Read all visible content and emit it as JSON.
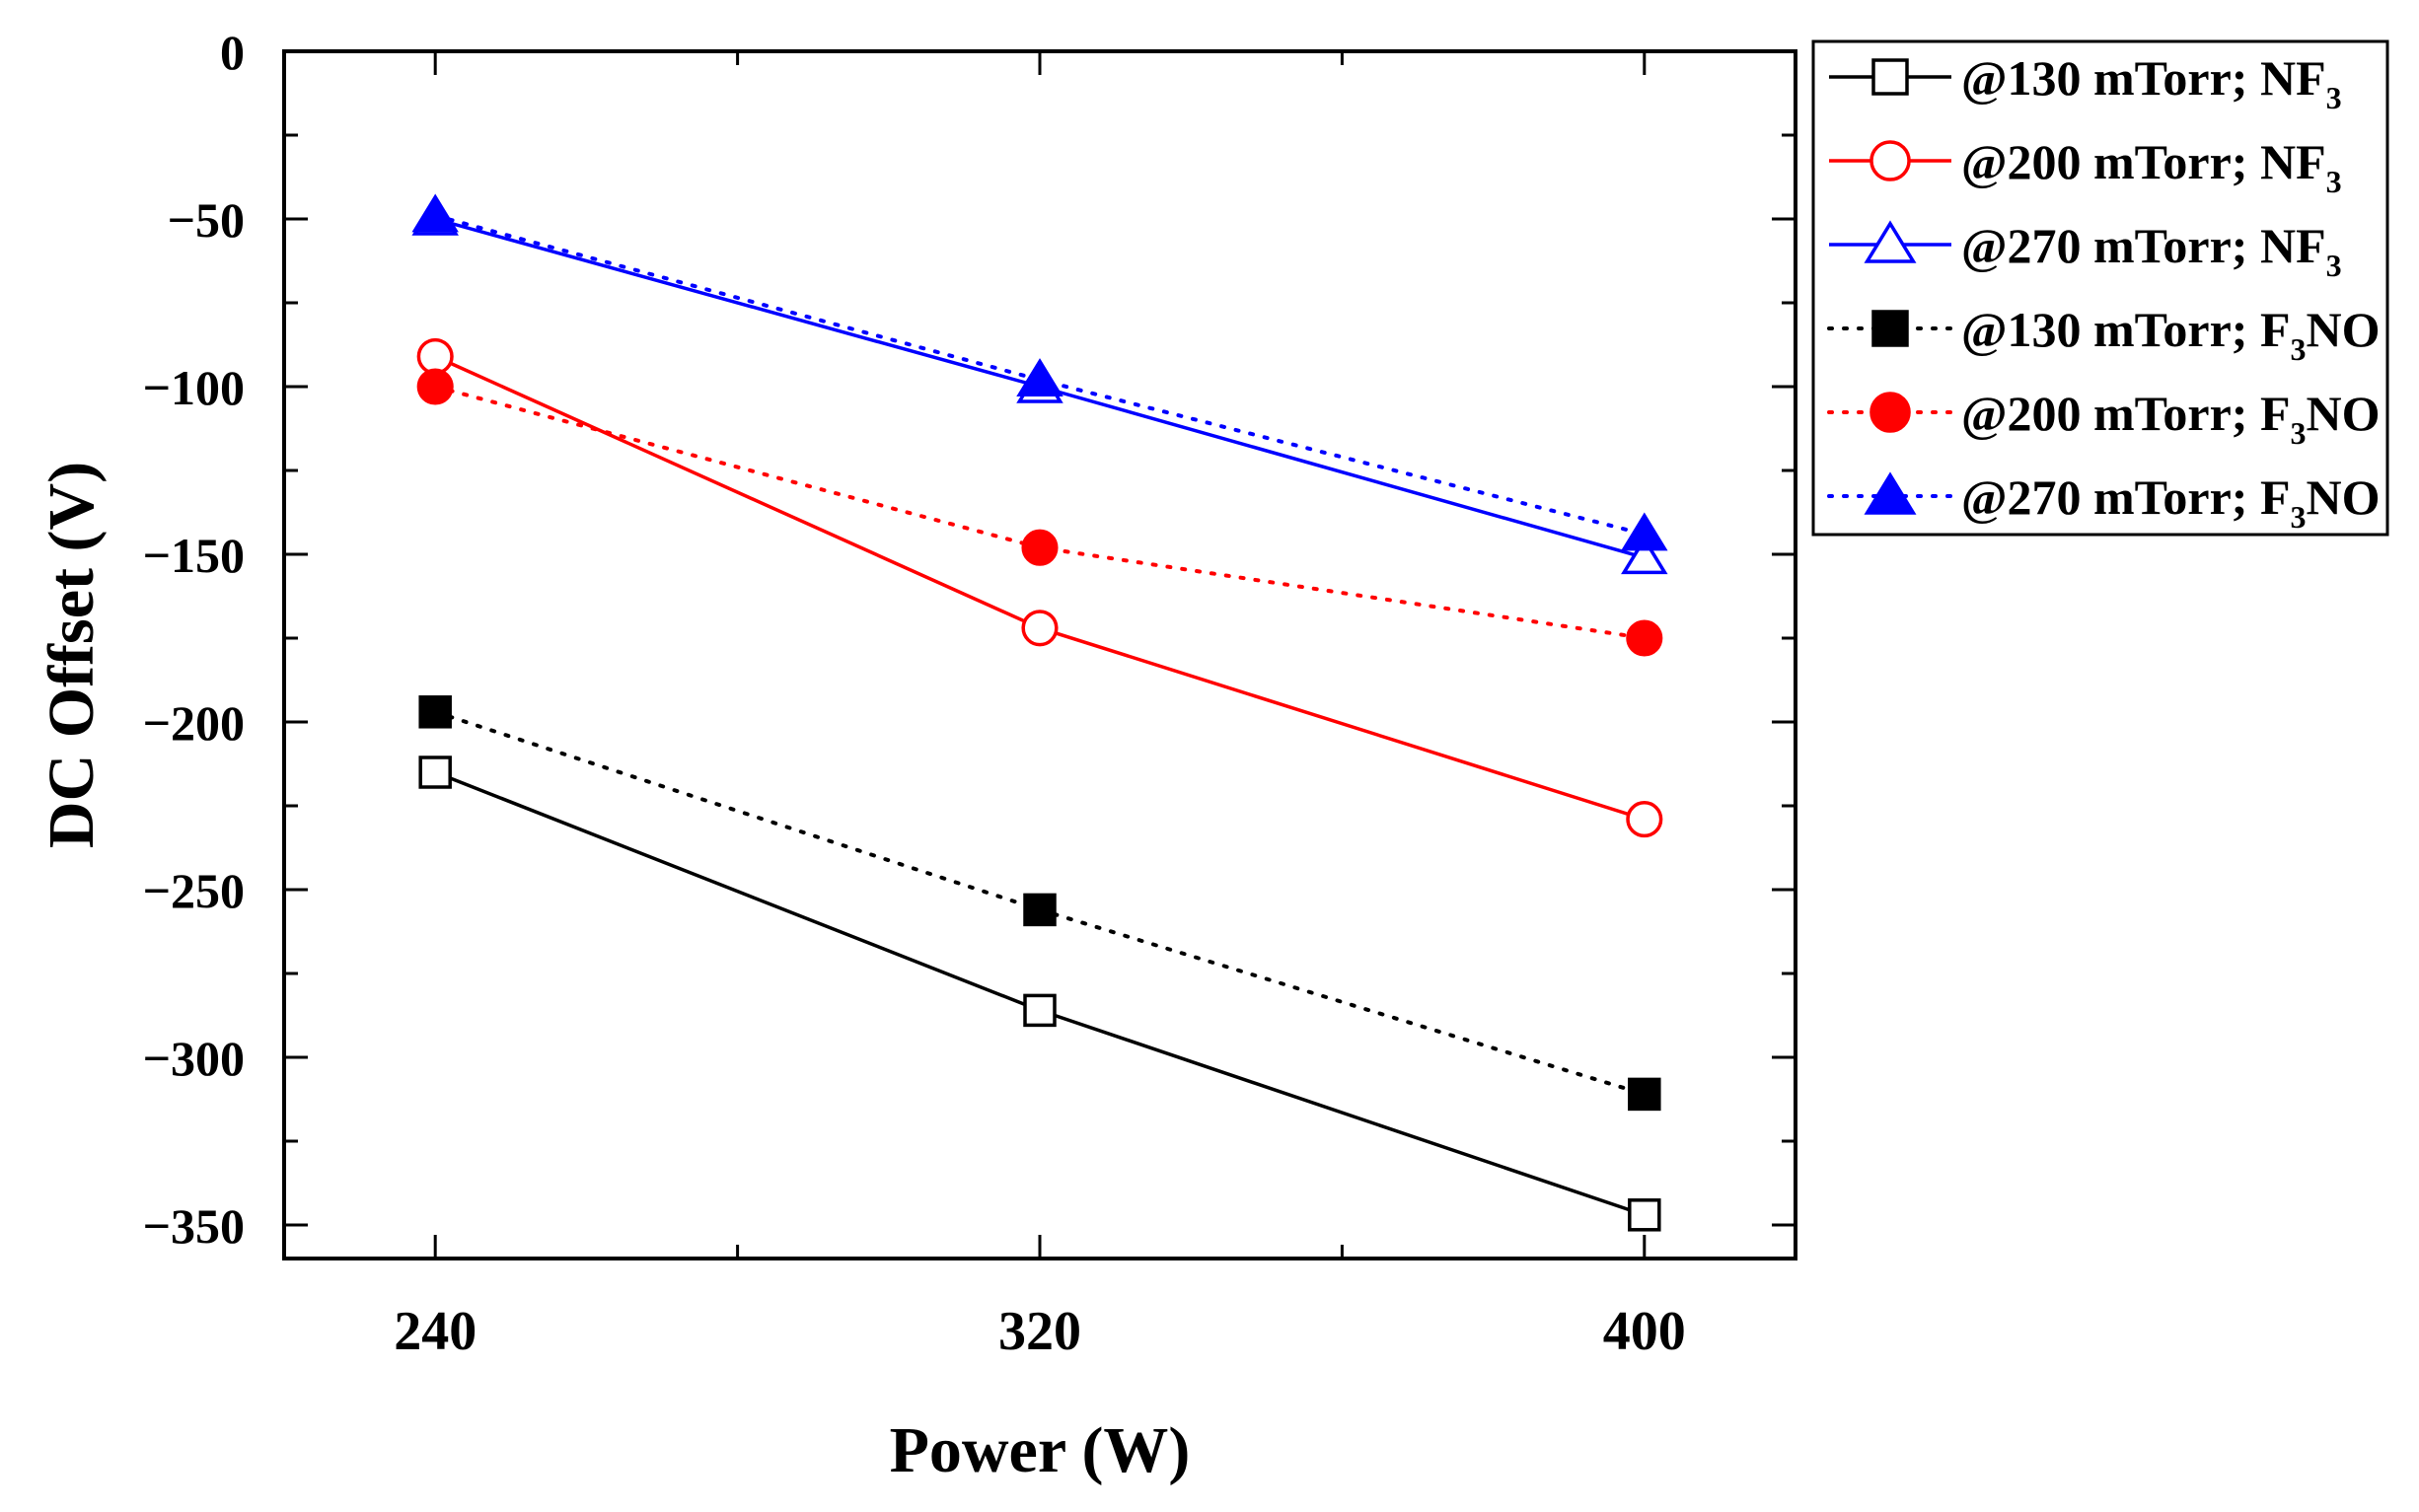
{
  "chart_data": {
    "type": "line",
    "title": "",
    "xlabel": "Power (W)",
    "ylabel": "DC Offset (V)",
    "x": [
      240,
      320,
      400
    ],
    "x_ticks": [
      "240",
      "320",
      "400"
    ],
    "xlim": [
      220,
      420
    ],
    "ylim": [
      -360,
      0
    ],
    "y_ticks": [
      0,
      -50,
      -100,
      -150,
      -200,
      -250,
      -300,
      -350
    ],
    "y_tick_labels": [
      "0",
      "−50",
      "−100",
      "−150",
      "−200",
      "−250",
      "−300",
      "−350"
    ],
    "grid": false,
    "legend_position": "outside-top-right",
    "series": [
      {
        "name_prefix": "@130 mTorr; NF",
        "name_sub": "3",
        "name_suffix": "",
        "values": [
          -215,
          -286,
          -347
        ],
        "color": "#000000",
        "marker": "square",
        "filled": false,
        "line": "solid"
      },
      {
        "name_prefix": "@200 mTorr; NF",
        "name_sub": "3",
        "name_suffix": "",
        "values": [
          -91,
          -172,
          -229
        ],
        "color": "#ff0000",
        "marker": "circle",
        "filled": false,
        "line": "solid"
      },
      {
        "name_prefix": "@270 mTorr; NF",
        "name_sub": "3",
        "name_suffix": "",
        "values": [
          -50,
          -100,
          -151
        ],
        "color": "#0000ff",
        "marker": "triangle",
        "filled": false,
        "line": "solid"
      },
      {
        "name_prefix": "@130 mTorr; F",
        "name_sub": "3",
        "name_suffix": "NO",
        "values": [
          -197,
          -256,
          -311
        ],
        "color": "#000000",
        "marker": "square",
        "filled": true,
        "line": "dotted"
      },
      {
        "name_prefix": "@200 mTorr; F",
        "name_sub": "3",
        "name_suffix": "NO",
        "values": [
          -100,
          -148,
          -175
        ],
        "color": "#ff0000",
        "marker": "circle",
        "filled": true,
        "line": "dotted"
      },
      {
        "name_prefix": "@270 mTorr; F",
        "name_sub": "3",
        "name_suffix": "NO",
        "values": [
          -49,
          -98,
          -144
        ],
        "color": "#0000ff",
        "marker": "triangle",
        "filled": true,
        "line": "dotted"
      }
    ]
  }
}
